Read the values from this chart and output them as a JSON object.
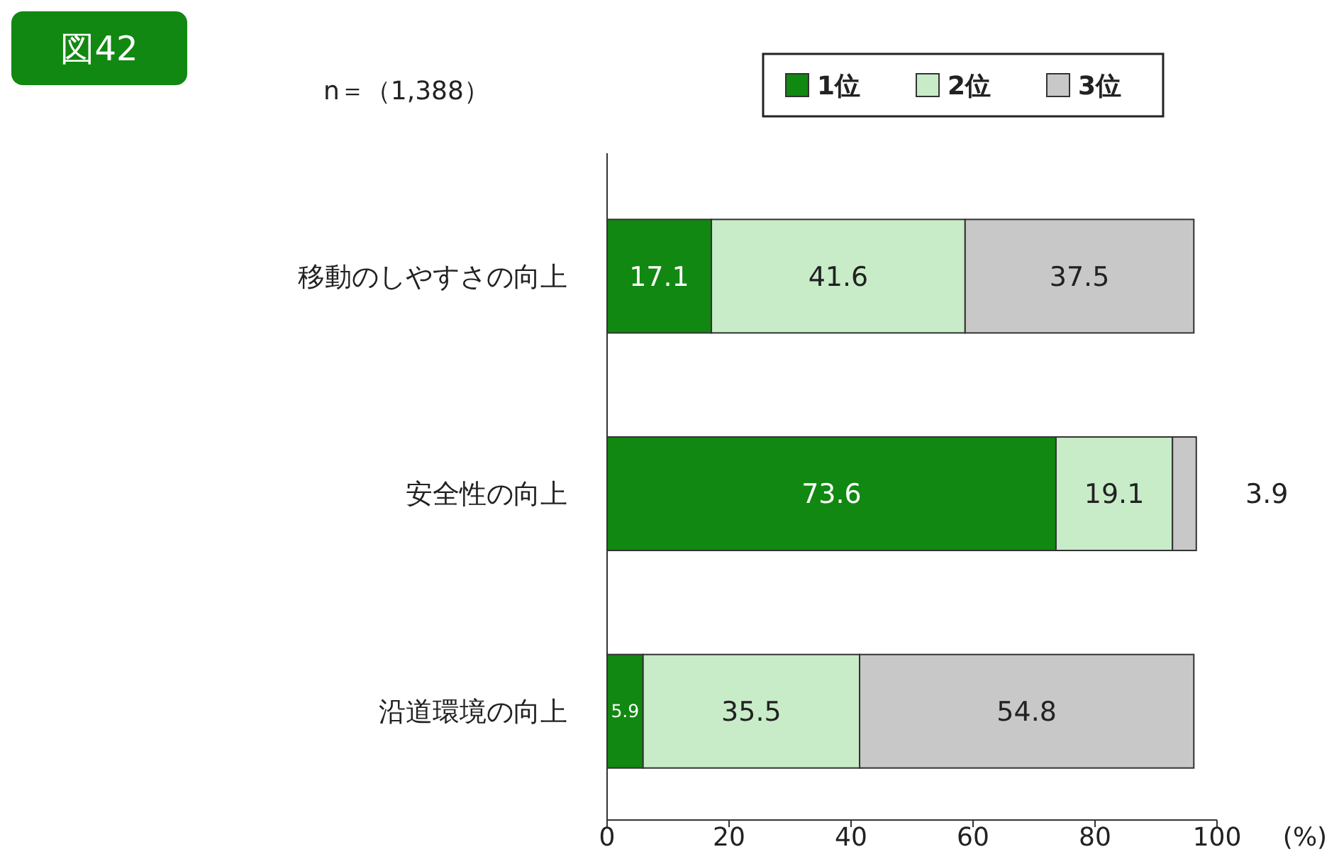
{
  "chart_data": {
    "type": "bar",
    "orientation": "horizontal",
    "stacked": true,
    "title": "図42",
    "annotations": [
      "n＝（1,388）"
    ],
    "xlabel": "(%)",
    "categories": [
      "移動のしやすさの向上",
      "安全性の向上",
      "沿道環境の向上"
    ],
    "series": [
      {
        "name": "1位",
        "color": "#118811",
        "values": [
          17.1,
          73.6,
          5.9
        ]
      },
      {
        "name": "2位",
        "color": "#c8ecc8",
        "values": [
          41.6,
          19.1,
          35.5
        ]
      },
      {
        "name": "3位",
        "color": "#c8c8c8",
        "values": [
          37.5,
          3.9,
          54.8
        ]
      }
    ],
    "xlim": [
      0,
      100
    ],
    "xticks": [
      0,
      20,
      40,
      60,
      80,
      100
    ],
    "data_labels": true,
    "legend": "top right"
  }
}
